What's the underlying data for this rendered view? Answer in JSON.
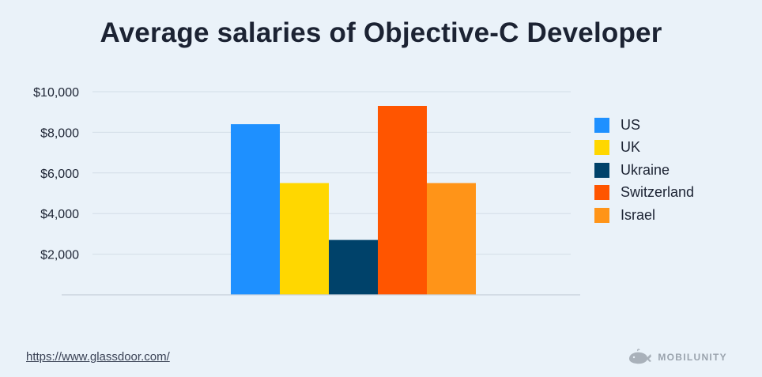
{
  "chart_data": {
    "type": "bar",
    "title": "Average salaries of Objective-C Developer",
    "xlabel": "",
    "ylabel": "",
    "ylim": [
      0,
      10000
    ],
    "yticks": [
      2000,
      4000,
      6000,
      8000,
      10000
    ],
    "ytick_labels": [
      "$2,000",
      "$4,000",
      "$6,000",
      "$8,000",
      "$10,000"
    ],
    "grid": true,
    "legend_position": "right",
    "series": [
      {
        "name": "US",
        "value": 8400,
        "color": "#1e90ff"
      },
      {
        "name": "UK",
        "value": 5500,
        "color": "#ffd700"
      },
      {
        "name": "Ukraine",
        "value": 2700,
        "color": "#00426a"
      },
      {
        "name": "Switzerland",
        "value": 9300,
        "color": "#ff5500"
      },
      {
        "name": "Israel",
        "value": 5500,
        "color": "#ff9418"
      }
    ]
  },
  "footer": {
    "source": "https://www.glassdoor.com/",
    "brand": "MOBILUNITY"
  }
}
